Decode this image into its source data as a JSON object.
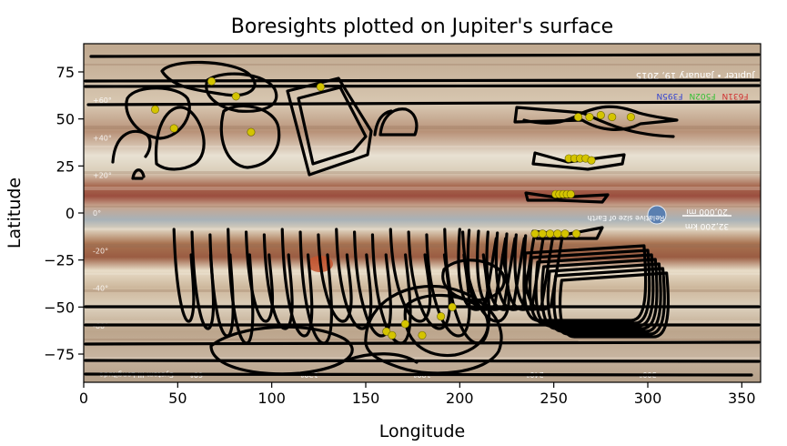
{
  "chart_data": {
    "type": "scatter",
    "title": "Boresights plotted on Jupiter's surface",
    "xlabel": "Longitude",
    "ylabel": "Latitude",
    "xlim": [
      0,
      360
    ],
    "ylim": [
      -90,
      90
    ],
    "xticks": [
      0,
      50,
      100,
      150,
      200,
      250,
      300,
      350
    ],
    "xtick_labels": [
      "0",
      "50",
      "100",
      "150",
      "200",
      "250",
      "300",
      "350"
    ],
    "yticks": [
      75,
      50,
      25,
      0,
      -25,
      -50,
      -75
    ],
    "ytick_labels": [
      "75",
      "50",
      "25",
      "0",
      "−25",
      "−50",
      "−75"
    ],
    "grid": false,
    "background_image": "Jupiter cylindrical map with cloud bands",
    "colors": {
      "boresight_points": "#d4c400",
      "footprint_outlines": "#000000",
      "band_light": "#e6dccb",
      "band_brown": "#a67d60",
      "band_red": "#9b4e3e",
      "band_blue": "#a8b2b8",
      "great_red_spot": "#c5532e"
    },
    "series": [
      {
        "points": [
          [
            38,
            55
          ],
          [
            48,
            45
          ],
          [
            68,
            70
          ],
          [
            81,
            62
          ],
          [
            89,
            43
          ],
          [
            126,
            67
          ],
          [
            263,
            51
          ],
          [
            269,
            51
          ],
          [
            275,
            52
          ],
          [
            281,
            51
          ],
          [
            291,
            51
          ],
          [
            258,
            29
          ],
          [
            261,
            29
          ],
          [
            264,
            29
          ],
          [
            267,
            29
          ],
          [
            270,
            28
          ],
          [
            251,
            10
          ],
          [
            253,
            10
          ],
          [
            255,
            10
          ],
          [
            257,
            10
          ],
          [
            259,
            10
          ],
          [
            240,
            -11
          ],
          [
            244,
            -11
          ],
          [
            248,
            -11
          ],
          [
            252,
            -11
          ],
          [
            256,
            -11
          ],
          [
            262,
            -11
          ],
          [
            161,
            -63
          ],
          [
            164,
            -65
          ],
          [
            171,
            -59
          ],
          [
            180,
            -65
          ],
          [
            190,
            -55
          ],
          [
            196,
            -50
          ]
        ]
      }
    ],
    "map_annotations": {
      "header": "Jupiter • January 19, 2015",
      "filters": [
        "F631N",
        "F502N",
        "F395N"
      ],
      "scale_mi": "20,000 mi",
      "scale_km": "32,200 km",
      "scale_note": "Relative size of Earth",
      "lat_marks": [
        "+60°",
        "+40°",
        "+20°",
        "0°",
        "-20°",
        "-40°",
        "-60°"
      ],
      "lon_marks": [
        "60°",
        "120°",
        "180°",
        "240°",
        "300°"
      ],
      "lon_title": "System III Longitude"
    }
  }
}
